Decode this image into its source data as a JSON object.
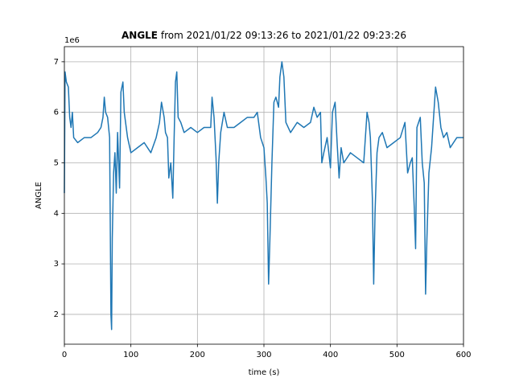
{
  "chart_data": {
    "type": "line",
    "title_bold": "ANGLE",
    "title_rest": "from 2021/01/22 09:13:26 to 2021/01/22 09:23:26",
    "x_label": "time (s)",
    "y_label": "ANGLE",
    "offset_label": "1e6",
    "xlim": [
      0,
      600
    ],
    "ylim": [
      1.41,
      7.3
    ],
    "xticks": [
      0,
      100,
      200,
      300,
      400,
      500,
      600
    ],
    "yticks": [
      2,
      3,
      4,
      5,
      6,
      7
    ],
    "grid": true,
    "x": [
      0,
      1,
      3,
      6,
      8,
      10,
      12,
      14,
      20,
      30,
      40,
      50,
      55,
      58,
      60,
      62,
      65,
      68,
      70,
      71,
      72,
      74,
      76,
      78,
      80,
      83,
      85,
      88,
      90,
      95,
      100,
      110,
      120,
      130,
      138,
      143,
      146,
      150,
      152,
      155,
      157,
      160,
      163,
      165,
      167,
      169,
      171,
      175,
      180,
      190,
      200,
      210,
      220,
      222,
      225,
      228,
      230,
      232,
      235,
      240,
      245,
      255,
      265,
      275,
      285,
      290,
      295,
      300,
      303,
      305,
      307,
      309,
      312,
      315,
      318,
      322,
      324,
      327,
      330,
      333,
      340,
      350,
      360,
      370,
      375,
      380,
      385,
      387,
      390,
      395,
      400,
      403,
      407,
      410,
      413,
      416,
      420,
      430,
      440,
      450,
      455,
      458,
      460,
      463,
      465,
      467,
      470,
      473,
      478,
      485,
      495,
      505,
      512,
      516,
      520,
      523,
      526,
      528,
      530,
      535,
      538,
      541,
      543,
      545,
      548,
      552,
      555,
      558,
      562,
      566,
      570,
      575,
      580,
      590,
      600
    ],
    "series": [
      {
        "name": "ANGLE",
        "color": "#1f77b4",
        "values": [
          4.4,
          6.8,
          6.6,
          6.5,
          5.9,
          5.7,
          6.0,
          5.5,
          5.4,
          5.5,
          5.5,
          5.6,
          5.7,
          5.9,
          6.3,
          6.0,
          5.9,
          5.5,
          2.0,
          1.7,
          3.5,
          4.8,
          5.2,
          4.4,
          5.6,
          4.5,
          6.4,
          6.6,
          6.0,
          5.5,
          5.2,
          5.3,
          5.4,
          5.2,
          5.5,
          5.8,
          6.2,
          5.9,
          5.6,
          5.5,
          4.7,
          5.0,
          4.3,
          5.5,
          6.6,
          6.8,
          5.9,
          5.8,
          5.6,
          5.7,
          5.6,
          5.7,
          5.7,
          6.3,
          5.9,
          5.1,
          4.2,
          5.0,
          5.6,
          6.0,
          5.7,
          5.7,
          5.8,
          5.9,
          5.9,
          6.0,
          5.5,
          5.3,
          4.7,
          4.2,
          2.6,
          3.5,
          5.0,
          6.2,
          6.3,
          6.1,
          6.7,
          7.0,
          6.7,
          5.8,
          5.6,
          5.8,
          5.7,
          5.8,
          6.1,
          5.9,
          6.0,
          5.0,
          5.2,
          5.5,
          4.9,
          6.0,
          6.2,
          5.4,
          4.7,
          5.3,
          5.0,
          5.2,
          5.1,
          5.0,
          6.0,
          5.8,
          5.5,
          4.3,
          2.6,
          4.0,
          5.2,
          5.5,
          5.6,
          5.3,
          5.4,
          5.5,
          5.8,
          4.8,
          5.0,
          5.1,
          4.1,
          3.3,
          5.7,
          5.9,
          5.0,
          4.6,
          2.4,
          3.5,
          4.8,
          5.3,
          5.9,
          6.5,
          6.2,
          5.7,
          5.5,
          5.6,
          5.3,
          5.5,
          5.5
        ]
      }
    ]
  }
}
